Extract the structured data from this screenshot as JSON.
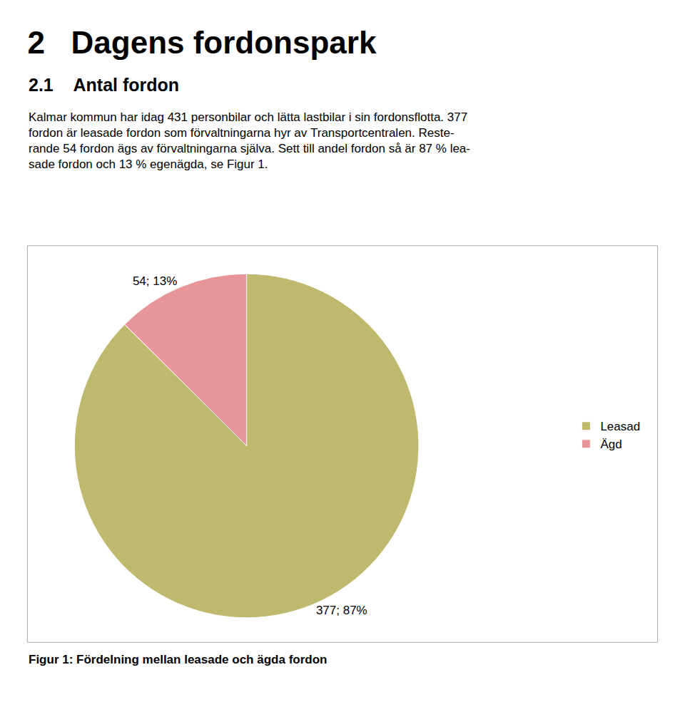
{
  "chart_data": {
    "type": "pie",
    "title": "2   Dagens fordonspark",
    "subtitle": "2.1    Antal fordon",
    "body": [
      "Kalmar kommun har idag 431 personbilar och lätta lastbilar i sin fordonsflotta. 377",
      "fordon är leasade fordon som förvaltningarna hyr av Transportcentralen. Reste-",
      "rande 54 fordon ägs av förvaltningarna själva. Sett till andel fordon så är 87 % lea-",
      "sade fordon och 13 % egenägda, se Figur 1."
    ],
    "categories": [
      "Leasad",
      "Ägd"
    ],
    "values": [
      377,
      54
    ],
    "value_labels": [
      "377; 87%",
      "54; 13%"
    ],
    "colors": [
      "#bfb96e",
      "#e8959a"
    ],
    "data_labels": true,
    "legend": "right",
    "caption": "Figur 1: Fördelning mellan leasade och ägda fordon"
  }
}
